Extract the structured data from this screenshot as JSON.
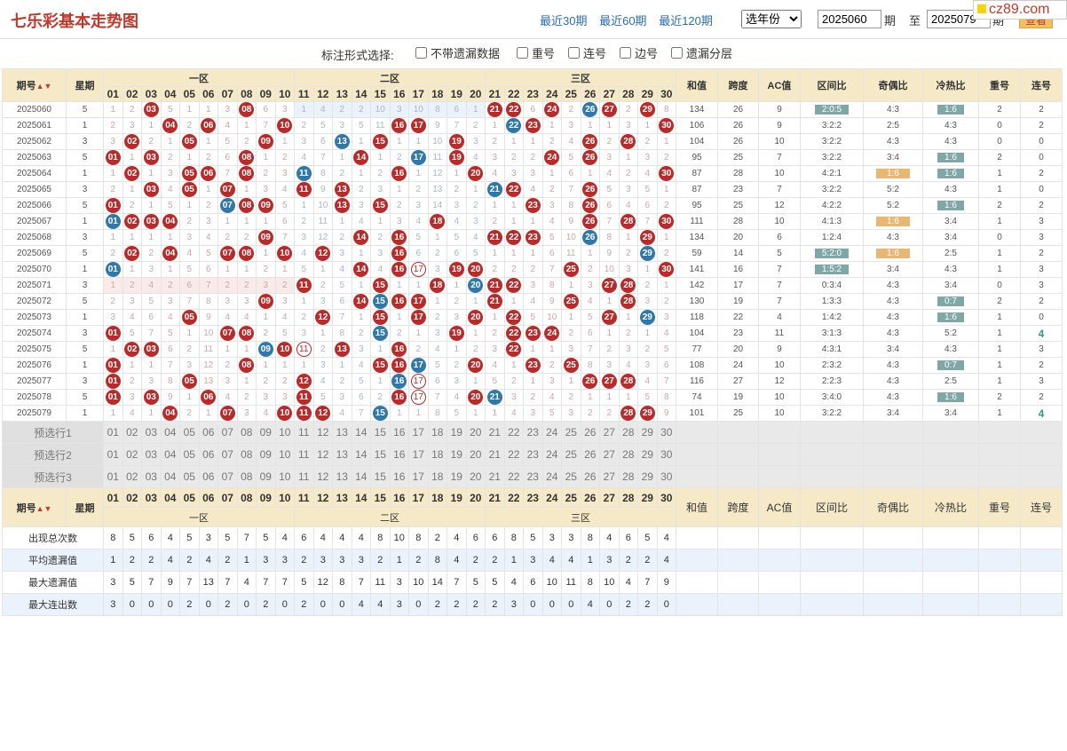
{
  "header": {
    "title": "七乐彩基本走势图",
    "recent": [
      "最近30期",
      "最近60期",
      "最近120期"
    ],
    "year_select": "选年份",
    "from": "2025060",
    "qi": "期",
    "to_label": "至",
    "to": "2025079",
    "view": "查看",
    "brand": "cz89.com"
  },
  "filter": {
    "label": "标注形式选择:",
    "options": [
      "不带遗漏数据",
      "重号",
      "连号",
      "边号",
      "遗漏分层"
    ]
  },
  "cols": {
    "issue": "期号",
    "week": "星期",
    "zones": [
      "一区",
      "二区",
      "三区"
    ],
    "numbers": [
      "01",
      "02",
      "03",
      "04",
      "05",
      "06",
      "07",
      "08",
      "09",
      "10",
      "11",
      "12",
      "13",
      "14",
      "15",
      "16",
      "17",
      "18",
      "19",
      "20",
      "21",
      "22",
      "23",
      "24",
      "25",
      "26",
      "27",
      "28",
      "29",
      "30"
    ],
    "extras": [
      "和值",
      "跨度",
      "AC值",
      "区间比",
      "奇偶比",
      "冷热比",
      "重号",
      "连号"
    ]
  },
  "rows": [
    {
      "issue": "2025060",
      "week": "5",
      "sum": "134",
      "span": "26",
      "ac": "9",
      "zone": "2:0:5",
      "oe": "4:3",
      "hc": "1:6",
      "rep": "2",
      "con": "2"
    },
    {
      "issue": "2025061",
      "week": "1",
      "sum": "106",
      "span": "26",
      "ac": "9",
      "zone": "3:2:2",
      "oe": "2:5",
      "hc": "4:3",
      "rep": "0",
      "con": "2"
    },
    {
      "issue": "2025062",
      "week": "3",
      "sum": "104",
      "span": "26",
      "ac": "10",
      "zone": "3:2:2",
      "oe": "4:3",
      "hc": "4:3",
      "rep": "0",
      "con": "0"
    },
    {
      "issue": "2025063",
      "week": "5",
      "sum": "95",
      "span": "25",
      "ac": "7",
      "zone": "3:2:2",
      "oe": "3:4",
      "hc": "1:6",
      "rep": "2",
      "con": "0"
    },
    {
      "issue": "2025064",
      "week": "1",
      "sum": "87",
      "span": "28",
      "ac": "10",
      "zone": "4:2:1",
      "oe": "1:6",
      "hc": "1:6",
      "rep": "1",
      "con": "2"
    },
    {
      "issue": "2025065",
      "week": "3",
      "sum": "87",
      "span": "23",
      "ac": "7",
      "zone": "3:2:2",
      "oe": "5:2",
      "hc": "4:3",
      "rep": "1",
      "con": "0"
    },
    {
      "issue": "2025066",
      "week": "5",
      "sum": "95",
      "span": "25",
      "ac": "12",
      "zone": "4:2:2",
      "oe": "5:2",
      "hc": "1:6",
      "rep": "2",
      "con": "2"
    },
    {
      "issue": "2025067",
      "week": "1",
      "sum": "111",
      "span": "28",
      "ac": "10",
      "zone": "4:1:3",
      "oe": "1:6",
      "hc": "3:4",
      "rep": "1",
      "con": "3"
    },
    {
      "issue": "2025068",
      "week": "3",
      "sum": "134",
      "span": "20",
      "ac": "6",
      "zone": "1:2:4",
      "oe": "4:3",
      "hc": "3:4",
      "rep": "0",
      "con": "3"
    },
    {
      "issue": "2025069",
      "week": "5",
      "sum": "59",
      "span": "14",
      "ac": "5",
      "zone": "5:2:0",
      "oe": "1:6",
      "hc": "2:5",
      "rep": "1",
      "con": "2"
    },
    {
      "issue": "2025070",
      "week": "1",
      "sum": "141",
      "span": "16",
      "ac": "7",
      "zone": "1:5:2",
      "oe": "3:4",
      "hc": "4:3",
      "rep": "1",
      "con": "3"
    },
    {
      "issue": "2025071",
      "week": "3",
      "sum": "142",
      "span": "17",
      "ac": "7",
      "zone": "0:3:4",
      "oe": "4:3",
      "hc": "3:4",
      "rep": "0",
      "con": "3"
    },
    {
      "issue": "2025072",
      "week": "5",
      "sum": "130",
      "span": "19",
      "ac": "7",
      "zone": "1:3:3",
      "oe": "4:3",
      "hc": "0:7",
      "rep": "2",
      "con": "2"
    },
    {
      "issue": "2025073",
      "week": "1",
      "sum": "118",
      "span": "22",
      "ac": "4",
      "zone": "1:4:2",
      "oe": "4:3",
      "hc": "1:6",
      "rep": "1",
      "con": "0"
    },
    {
      "issue": "2025074",
      "week": "3",
      "sum": "104",
      "span": "23",
      "ac": "11",
      "zone": "3:1:3",
      "oe": "4:3",
      "hc": "5:2",
      "rep": "1",
      "con": "4"
    },
    {
      "issue": "2025075",
      "week": "5",
      "sum": "77",
      "span": "20",
      "ac": "9",
      "zone": "4:3:1",
      "oe": "3:4",
      "hc": "4:3",
      "rep": "1",
      "con": "3"
    },
    {
      "issue": "2025076",
      "week": "1",
      "sum": "108",
      "span": "24",
      "ac": "10",
      "zone": "2:3:2",
      "oe": "4:3",
      "hc": "0:7",
      "rep": "1",
      "con": "2"
    },
    {
      "issue": "2025077",
      "week": "3",
      "sum": "116",
      "span": "27",
      "ac": "12",
      "zone": "2:2:3",
      "oe": "4:3",
      "hc": "2:5",
      "rep": "1",
      "con": "3"
    },
    {
      "issue": "2025078",
      "week": "5",
      "sum": "74",
      "span": "19",
      "ac": "10",
      "zone": "3:4:0",
      "oe": "4:3",
      "hc": "1:6",
      "rep": "2",
      "con": "2"
    },
    {
      "issue": "2025079",
      "week": "1",
      "sum": "101",
      "span": "25",
      "ac": "10",
      "zone": "3:2:2",
      "oe": "3:4",
      "hc": "3:4",
      "rep": "1",
      "con": "4"
    }
  ],
  "grid": [
    "1|2|R03|5|1|1|3|R08|6|3|1|4|2|2|10|3|10|8|6|1|R21|R22|6|R24|2|B26|R27|2|R29|8",
    "2|3|1|R04|2|R06|4|1|7|R10|2|5|3|5|11|R16|R17|9|7|2|1|B22|R23|1|3|1|1|3|1|R30",
    "3|R02|2|1|R05|1|5|2|R09|1|3|6|B13|1|R15|1|1|10|R19|3|2|1|1|2|4|R26|2|R28|2|1",
    "R01|1|R03|2|1|2|6|R08|1|2|4|7|1|R14|1|2|B17|11|R19|4|3|2|2|R24|5|R26|3|1|3|2",
    "1|R02|1|3|R05|R06|7|R08|2|3|B11|8|2|1|2|R16|1|12|1|R20|4|3|3|1|6|1|4|2|4|R30",
    "2|1|R03|4|R05|1|R07|1|3|4|R11|9|R13|2|3|1|2|13|2|1|B21|R22|4|2|7|R26|5|3|5|1",
    "R01|2|1|5|1|2|B07|R08|R09|5|1|10|R13|3|R15|2|3|14|3|2|1|1|R23|3|8|R26|6|4|6|2",
    "B01|R02|R03|R04|2|3|1|1|1|6|2|11|1|4|1|3|4|R18|4|3|2|1|1|4|9|R26|7|R28|7|R30",
    "1|1|1|1|3|4|2|2|R09|7|3|12|2|R14|2|R16|5|1|5|4|R21|R22|R23|5|10|B26|8|1|R29|1",
    "2|R02|2|R04|4|5|R07|R08|1|R10|4|R12|3|1|3|R16|6|2|6|5|1|1|1|6|11|1|9|2|B29|2",
    "B01|1|3|1|5|6|1|1|2|1|5|1|4|R14|4|R16|R17|3|R19|R20|2|2|2|7|R25|2|10|3|1|R30",
    "1|2|4|2|6|7|2|2|3|2|R11|2|5|1|R15|1|1|R18|1|B20|R21|R22|3|8|1|3|R27|R28|2|1",
    "2|3|5|3|7|8|3|3|R09|3|1|3|6|R14|B15|R16|R17|1|2|1|R21|1|4|9|R25|4|1|R28|3|2",
    "3|4|6|4|R05|9|4|4|1|4|2|R12|7|1|R15|1|R17|2|3|R20|1|R22|5|10|1|5|R27|1|B29|3",
    "R01|5|7|5|1|10|R07|R08|2|5|3|1|8|2|B15|2|1|3|R19|1|2|R22|R23|R24|2|6|1|2|1|4",
    "1|R02|R03|6|2|11|1|1|B09|R10|R11|2|R13|3|1|R16|2|4|1|2|3|R22|1|1|3|7|2|3|2|5",
    "R01|1|1|7|3|12|2|R08|1|1|1|3|1|4|R15|R16|B17|5|2|R20|4|1|R23|2|R25|8|3|4|3|6",
    "R01|2|3|8|R05|13|3|1|2|2|R12|4|2|5|1|B16|R17|6|3|1|5|2|1|3|1|R26|R27|R28|4|7",
    "R01|3|R03|9|1|R06|4|2|3|3|R11|5|3|6|2|R16|R17|7|4|R20|B21|3|2|4|2|1|1|1|5|8",
    "1|4|1|R04|2|1|R07|3|4|R10|R11|R12|4|7|B15|1|1|8|5|1|1|4|3|5|3|2|2|R28|R29|9"
  ],
  "rings": {
    "8": [
      2,
      3,
      4
    ],
    "9": [
      16
    ],
    "10": [
      16
    ],
    "11": [
      16
    ],
    "13": [
      15,
      17
    ],
    "14": [],
    "15": [
      10,
      11,
      16
    ],
    "16": [
      1,
      10
    ],
    "17": [
      1,
      16
    ],
    "18": [
      1,
      16,
      17,
      27,
      28
    ],
    "19": [
      1,
      16,
      17
    ],
    "20": [
      10,
      11,
      12,
      16,
      17,
      29
    ]
  },
  "selectors": [
    "预选行1",
    "预选行2",
    "预选行3"
  ],
  "footer_extras": [
    "和值",
    "跨度",
    "AC值",
    "区间比",
    "奇偶比",
    "冷热比",
    "重号",
    "连号"
  ],
  "stats": [
    {
      "label": "出现总次数",
      "values": [
        "8",
        "5",
        "6",
        "4",
        "5",
        "3",
        "5",
        "7",
        "5",
        "4",
        "6",
        "4",
        "4",
        "4",
        "8",
        "10",
        "8",
        "2",
        "4",
        "6",
        "6",
        "8",
        "5",
        "3",
        "3",
        "8",
        "4",
        "6",
        "5",
        "4"
      ]
    },
    {
      "label": "平均遗漏值",
      "values": [
        "1",
        "2",
        "2",
        "4",
        "2",
        "4",
        "2",
        "1",
        "3",
        "3",
        "2",
        "3",
        "3",
        "3",
        "2",
        "1",
        "2",
        "8",
        "4",
        "2",
        "2",
        "1",
        "3",
        "4",
        "4",
        "1",
        "3",
        "2",
        "2",
        "4"
      ]
    },
    {
      "label": "最大遗漏值",
      "values": [
        "3",
        "5",
        "7",
        "9",
        "7",
        "13",
        "7",
        "4",
        "7",
        "7",
        "5",
        "12",
        "8",
        "7",
        "11",
        "3",
        "10",
        "14",
        "7",
        "5",
        "5",
        "4",
        "6",
        "10",
        "11",
        "8",
        "10",
        "4",
        "7",
        "9"
      ]
    },
    {
      "label": "最大连出数",
      "values": [
        "3",
        "0",
        "0",
        "0",
        "2",
        "0",
        "2",
        "0",
        "2",
        "0",
        "2",
        "0",
        "0",
        "4",
        "4",
        "3",
        "0",
        "2",
        "2",
        "2",
        "2",
        "3",
        "0",
        "0",
        "0",
        "4",
        "0",
        "2",
        "2",
        "0"
      ]
    }
  ]
}
